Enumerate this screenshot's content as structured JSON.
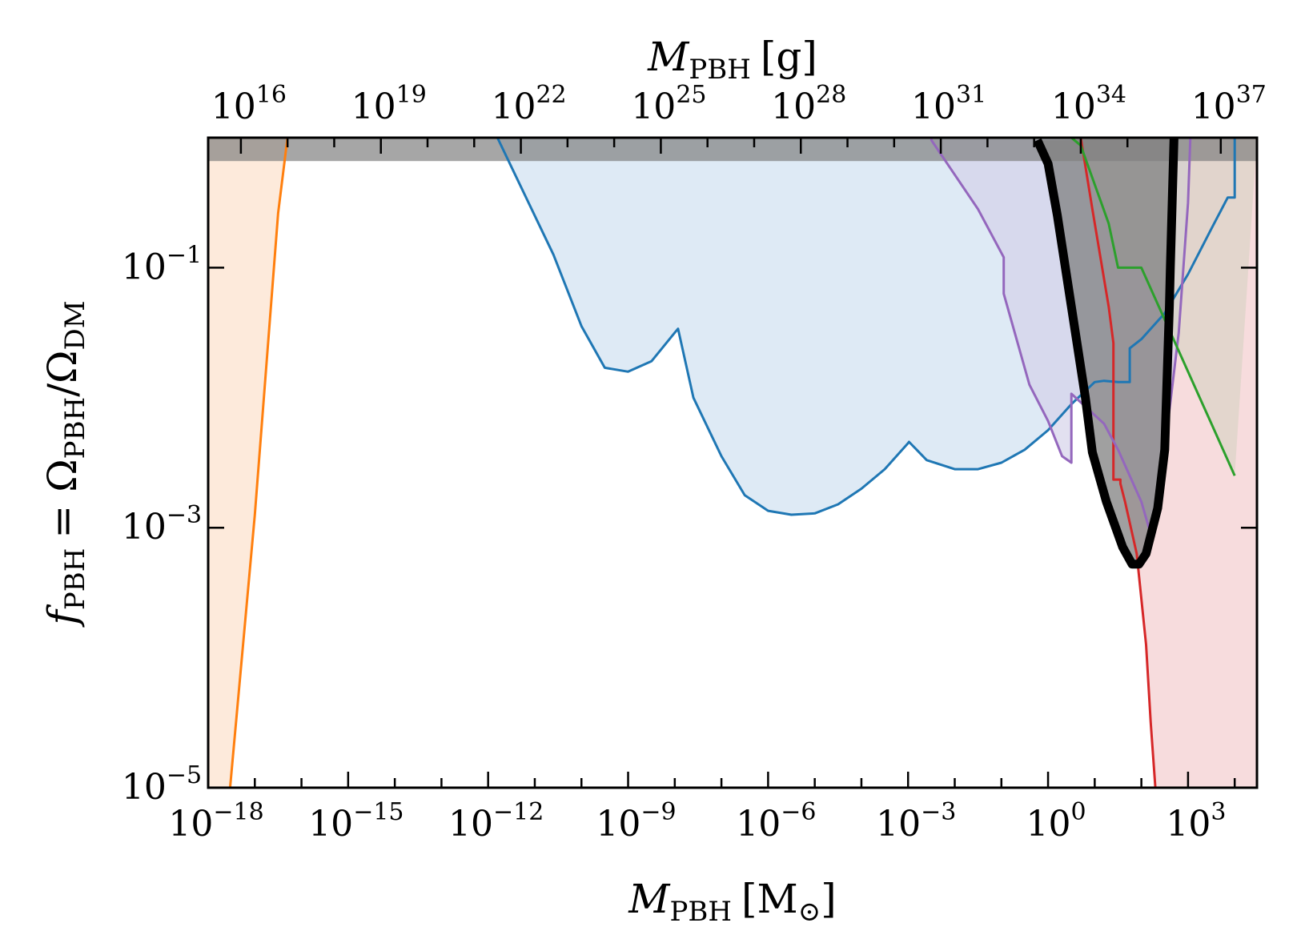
{
  "chart_data": {
    "type": "area",
    "xlabel_bottom": {
      "symbol": "M",
      "sub": "PBH",
      "unit": "[M",
      "unit_sub": "⊙",
      "unit_close": "]"
    },
    "xlabel_top": {
      "symbol": "M",
      "sub": "PBH",
      "unit": "[g]"
    },
    "ylabel": {
      "symbol": "f",
      "sub": "PBH",
      "eq": "= Ω",
      "sub2": "PBH",
      "slash": "/Ω",
      "sub3": "DM"
    },
    "x_scale": "log",
    "y_scale": "log",
    "xlim": [
      1e-18,
      30000
    ],
    "ylim": [
      1e-05,
      1
    ],
    "grid": false,
    "legend": "none",
    "x_ticks_bottom": [
      {
        "base": "10",
        "exp": "−18",
        "value": -18
      },
      {
        "base": "10",
        "exp": "−15",
        "value": -15
      },
      {
        "base": "10",
        "exp": "−12",
        "value": -12
      },
      {
        "base": "10",
        "exp": "−9",
        "value": -9
      },
      {
        "base": "10",
        "exp": "−6",
        "value": -6
      },
      {
        "base": "10",
        "exp": "−3",
        "value": -3
      },
      {
        "base": "10",
        "exp": "0",
        "value": 0
      },
      {
        "base": "10",
        "exp": "3",
        "value": 3
      }
    ],
    "x_ticks_top": [
      {
        "base": "10",
        "exp": "16",
        "value": 16
      },
      {
        "base": "10",
        "exp": "19",
        "value": 19
      },
      {
        "base": "10",
        "exp": "22",
        "value": 22
      },
      {
        "base": "10",
        "exp": "25",
        "value": 25
      },
      {
        "base": "10",
        "exp": "28",
        "value": 28
      },
      {
        "base": "10",
        "exp": "31",
        "value": 31
      },
      {
        "base": "10",
        "exp": "34",
        "value": 34
      },
      {
        "base": "10",
        "exp": "37",
        "value": 37
      }
    ],
    "y_ticks": [
      {
        "base": "10",
        "exp": "−5",
        "value": -5
      },
      {
        "base": "10",
        "exp": "−3",
        "value": -3
      },
      {
        "base": "10",
        "exp": "−1",
        "value": -1
      }
    ],
    "series": [
      {
        "id": "orange",
        "color": "#ff7f0e",
        "fill": "#fde8d7",
        "closure": "left",
        "points": [
          [
            -17.53,
            -5
          ],
          [
            -17.0,
            -2.9
          ],
          [
            -16.5,
            -0.58
          ],
          [
            -16.3,
            0
          ]
        ]
      },
      {
        "id": "blue",
        "color": "#1f77b4",
        "fill": "#dce9f4",
        "closure": "top",
        "points": [
          [
            -11.8,
            0
          ],
          [
            -10.6,
            -0.9
          ],
          [
            -10.0,
            -1.45
          ],
          [
            -9.5,
            -1.77
          ],
          [
            -9.0,
            -1.8
          ],
          [
            -8.5,
            -1.72
          ],
          [
            -8.0,
            -1.5
          ],
          [
            -7.93,
            -1.47
          ],
          [
            -7.6,
            -2.0
          ],
          [
            -7.0,
            -2.45
          ],
          [
            -6.5,
            -2.75
          ],
          [
            -6.0,
            -2.87
          ],
          [
            -5.5,
            -2.9
          ],
          [
            -5.0,
            -2.89
          ],
          [
            -4.5,
            -2.82
          ],
          [
            -4.0,
            -2.7
          ],
          [
            -3.5,
            -2.55
          ],
          [
            -3.0,
            -2.35
          ],
          [
            -2.98,
            -2.34
          ],
          [
            -2.6,
            -2.48
          ],
          [
            -2.0,
            -2.55
          ],
          [
            -1.5,
            -2.55
          ],
          [
            -1.0,
            -2.5
          ],
          [
            -0.5,
            -2.4
          ],
          [
            0,
            -2.25
          ],
          [
            0.5,
            -2.05
          ],
          [
            1.0,
            -1.88
          ],
          [
            1.2,
            -1.87
          ],
          [
            1.5,
            -1.88
          ],
          [
            1.75,
            -1.88
          ],
          [
            1.75,
            -1.62
          ],
          [
            2.0,
            -1.55
          ],
          [
            2.5,
            -1.35
          ],
          [
            3.0,
            -1.05
          ],
          [
            3.5,
            -0.7
          ],
          [
            3.85,
            -0.46
          ],
          [
            4.0,
            -0.46
          ],
          [
            4.0,
            0
          ]
        ]
      },
      {
        "id": "purple",
        "color": "#9467bd",
        "fill": "#d2d0e8",
        "closure": "top",
        "points": [
          [
            -2.5,
            0
          ],
          [
            -2.5,
            -0.02
          ],
          [
            -1.5,
            -0.55
          ],
          [
            -0.95,
            -0.92
          ],
          [
            -0.95,
            -1.2
          ],
          [
            -0.4,
            -1.9
          ],
          [
            0,
            -2.18
          ],
          [
            0.3,
            -2.45
          ],
          [
            0.5,
            -2.5
          ],
          [
            0.5,
            -1.97
          ],
          [
            1.2,
            -2.2
          ],
          [
            1.5,
            -2.4
          ],
          [
            2.0,
            -2.8
          ],
          [
            2.2,
            -3.05
          ],
          [
            2.6,
            -2.1
          ],
          [
            2.8,
            -1.5
          ],
          [
            2.9,
            -1.0
          ],
          [
            3.0,
            -0.5
          ],
          [
            3.05,
            0
          ]
        ]
      },
      {
        "id": "red",
        "color": "#d62728",
        "fill": "#f5d3d4",
        "closure": "bottom-right",
        "points": [
          [
            0.7,
            0
          ],
          [
            0.95,
            -0.55
          ],
          [
            1.3,
            -1.3
          ],
          [
            1.4,
            -1.58
          ],
          [
            1.4,
            -2.63
          ],
          [
            1.55,
            -2.63
          ],
          [
            1.55,
            -2.66
          ],
          [
            1.65,
            -2.8
          ],
          [
            1.9,
            -3.2
          ],
          [
            2.1,
            -3.9
          ],
          [
            2.2,
            -4.5
          ],
          [
            2.3,
            -5
          ]
        ]
      },
      {
        "id": "green",
        "color": "#2ca02c",
        "fill": "#d4d2c0",
        "closure": "top-right",
        "points": [
          [
            0.5,
            0
          ],
          [
            0.7,
            -0.06
          ],
          [
            1.3,
            -0.66
          ],
          [
            1.5,
            -1.0
          ],
          [
            2.0,
            -1.0
          ],
          [
            2.5,
            -1.4
          ],
          [
            3.0,
            -1.8
          ],
          [
            3.5,
            -2.2
          ],
          [
            4.0,
            -2.6
          ]
        ]
      },
      {
        "id": "black",
        "color": "#000000",
        "fill": "#808080",
        "closure": "top",
        "points": [
          [
            -0.23,
            -0.02
          ],
          [
            0,
            -0.2
          ],
          [
            0.2,
            -0.6
          ],
          [
            0.5,
            -1.3
          ],
          [
            0.8,
            -2.0
          ],
          [
            0.95,
            -2.42
          ],
          [
            1.25,
            -2.8
          ],
          [
            1.6,
            -3.15
          ],
          [
            1.8,
            -3.28
          ],
          [
            1.95,
            -3.28
          ],
          [
            2.1,
            -3.2
          ],
          [
            2.35,
            -2.85
          ],
          [
            2.5,
            -2.4
          ],
          [
            2.6,
            -1.3
          ],
          [
            2.62,
            -1.0
          ],
          [
            2.7,
            0
          ]
        ]
      }
    ],
    "top_band": {
      "from": -0.18,
      "to": 0,
      "color": "#808080",
      "opacity": 0.7
    }
  }
}
